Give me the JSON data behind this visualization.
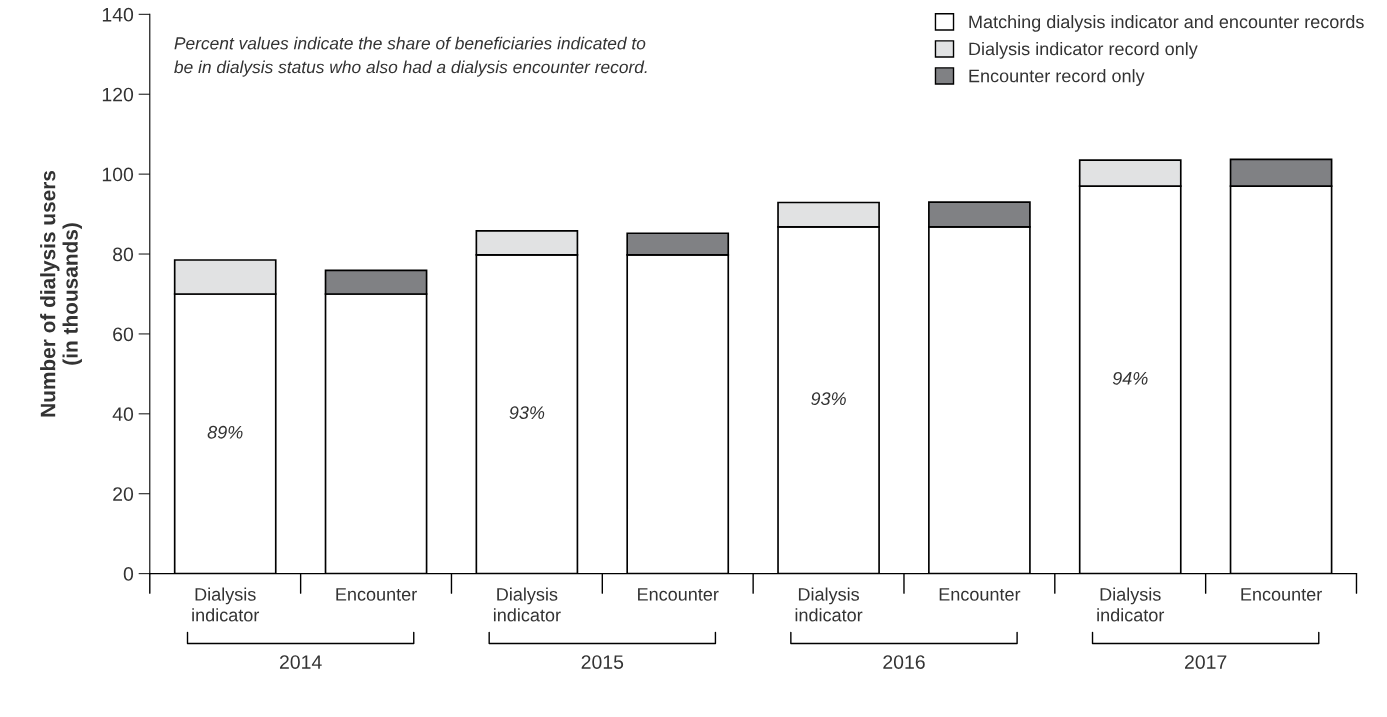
{
  "chart_data": {
    "type": "bar",
    "stacked": true,
    "ylabel": "Number of dialysis users\n(in thousands)",
    "categories": [
      "Dialysis\nindicator",
      "Encounter",
      "Dialysis\nindicator",
      "Encounter",
      "Dialysis\nindicator",
      "Encounter",
      "Dialysis\nindicator",
      "Encounter"
    ],
    "series": [
      {
        "name": "Matching dialysis indicator and encounter records",
        "color": "#ffffff",
        "values": [
          70.0,
          70.0,
          79.8,
          79.8,
          86.8,
          86.8,
          97.0,
          97.0
        ]
      },
      {
        "name": "Dialysis indicator record only",
        "color": "#e1e2e3",
        "values": [
          8.5,
          null,
          6.0,
          null,
          6.1,
          null,
          6.5,
          null
        ]
      },
      {
        "name": "Encounter record only",
        "color": "#808184",
        "values": [
          null,
          5.9,
          null,
          5.4,
          null,
          6.2,
          null,
          6.7
        ]
      }
    ],
    "ylim": [
      0,
      140
    ],
    "yticks": [
      0,
      20,
      40,
      60,
      80,
      100,
      120,
      140
    ],
    "grid": false,
    "legend": "top right",
    "annotations": [
      "Percent values indicate the share of beneficiaries indicated to\nbe in dialysis status who also had a dialysis encounter record.",
      "2014",
      "2015",
      "2016",
      "2017",
      "89%",
      "93%",
      "93%",
      "94%"
    ]
  }
}
